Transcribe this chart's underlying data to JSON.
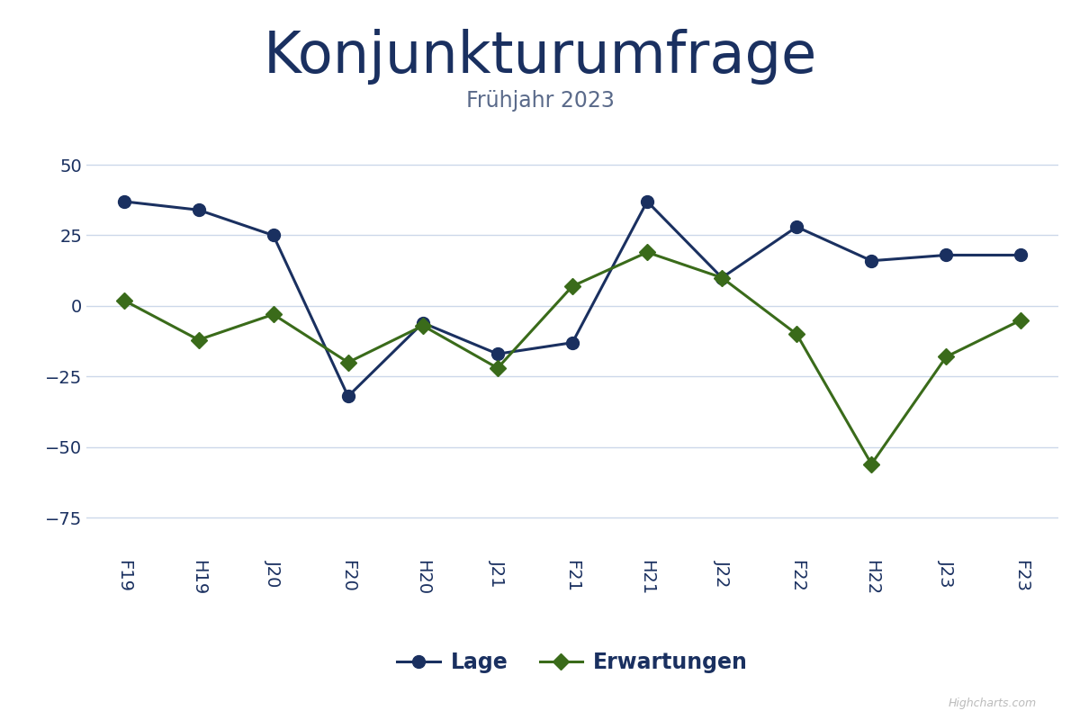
{
  "title": "Konjunkturumfrage",
  "subtitle": "Frühjahr 2023",
  "categories": [
    "F19",
    "H19",
    "J20",
    "F20",
    "H20",
    "J21",
    "F21",
    "H21",
    "J22",
    "F22",
    "H22",
    "J23",
    "F23"
  ],
  "lage": [
    37,
    34,
    25,
    -32,
    -6,
    -17,
    -13,
    37,
    10,
    28,
    16,
    18,
    18
  ],
  "erwartungen": [
    2,
    -12,
    -3,
    -20,
    -7,
    -22,
    7,
    19,
    10,
    -10,
    -56,
    -18,
    -5
  ],
  "lage_color": "#1a3060",
  "erwartungen_color": "#3a6b1a",
  "background_color": "#ffffff",
  "plot_bg_color": "#ffffff",
  "ylim": [
    -88,
    65
  ],
  "yticks": [
    -75,
    -50,
    -25,
    0,
    25,
    50
  ],
  "title_fontsize": 46,
  "subtitle_fontsize": 17,
  "tick_fontsize": 14,
  "legend_fontsize": 17,
  "title_color": "#1a3060",
  "subtitle_color": "#5a6a8a",
  "tick_color": "#1a3060",
  "grid_color": "#ccd8ea",
  "watermark": "Highcharts.com"
}
